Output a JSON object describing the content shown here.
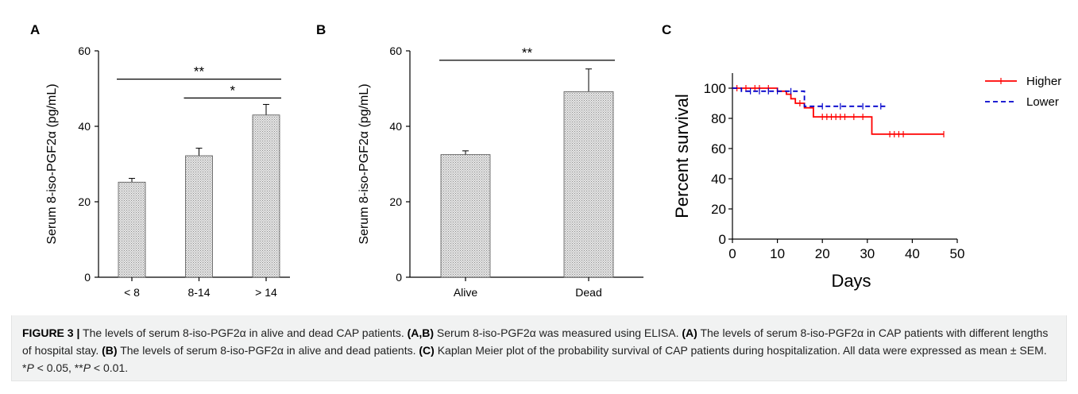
{
  "chart_data": [
    {
      "type": "bar",
      "panel": "A",
      "categories": [
        "< 8",
        "8-14",
        "> 14"
      ],
      "values": [
        25.2,
        32.2,
        43.0
      ],
      "errors": [
        1.0,
        2.0,
        2.8
      ],
      "ylabel": "Serum 8-iso-PGF2α (pg/mL)",
      "ylim": [
        0,
        60
      ],
      "yticks": [
        0,
        20,
        40,
        60
      ],
      "bar_fill": "dotted gray",
      "annotations": [
        {
          "from": 0,
          "to": 2,
          "label": "**",
          "level": 52.5
        },
        {
          "from": 1,
          "to": 2,
          "label": "*",
          "level": 47.5
        }
      ]
    },
    {
      "type": "bar",
      "panel": "B",
      "categories": [
        "Alive",
        "Dead"
      ],
      "values": [
        32.5,
        49.2
      ],
      "errors": [
        1.0,
        6.0
      ],
      "ylabel": "Serum 8-iso-PGF2α (pg/mL)",
      "ylim": [
        0,
        60
      ],
      "yticks": [
        0,
        20,
        40,
        60
      ],
      "bar_fill": "dotted gray",
      "annotations": [
        {
          "from": 0,
          "to": 1,
          "label": "**",
          "level": 57.5
        }
      ]
    },
    {
      "type": "line",
      "subtype": "kaplan-meier step",
      "panel": "C",
      "xlabel": "Days",
      "ylabel": "Percent survival",
      "xlim": [
        0,
        50
      ],
      "ylim": [
        0,
        110
      ],
      "xticks": [
        0,
        10,
        20,
        30,
        40,
        50
      ],
      "yticks": [
        0,
        20,
        40,
        60,
        80,
        100
      ],
      "legend_position": "top-right",
      "series": [
        {
          "name": "Higher",
          "color": "#ff0000",
          "style": "solid",
          "steps": [
            [
              0,
              100
            ],
            [
              10,
              100
            ],
            [
              10,
              98
            ],
            [
              12,
              98
            ],
            [
              12,
              96
            ],
            [
              13,
              96
            ],
            [
              13,
              93
            ],
            [
              14,
              93
            ],
            [
              14,
              90
            ],
            [
              16,
              90
            ],
            [
              16,
              87
            ],
            [
              18,
              87
            ],
            [
              18,
              81
            ],
            [
              31,
              81
            ],
            [
              31,
              69.5
            ],
            [
              47,
              69.5
            ]
          ],
          "censored": [
            [
              1,
              100
            ],
            [
              3,
              100
            ],
            [
              5,
              100
            ],
            [
              6,
              100
            ],
            [
              8,
              100
            ],
            [
              15,
              90
            ],
            [
              20,
              81
            ],
            [
              21,
              81
            ],
            [
              22,
              81
            ],
            [
              23,
              81
            ],
            [
              24,
              81
            ],
            [
              25,
              81
            ],
            [
              27,
              81
            ],
            [
              29,
              81
            ],
            [
              35,
              69.5
            ],
            [
              36,
              69.5
            ],
            [
              37,
              69.5
            ],
            [
              38,
              69.5
            ],
            [
              47,
              69.5
            ]
          ]
        },
        {
          "name": "Lower",
          "color": "#0000cc",
          "style": "dashed",
          "steps": [
            [
              0,
              100
            ],
            [
              2,
              100
            ],
            [
              2,
              98
            ],
            [
              16,
              98
            ],
            [
              16,
              88
            ],
            [
              34,
              88
            ]
          ],
          "censored": [
            [
              4,
              98
            ],
            [
              6,
              98
            ],
            [
              8,
              98
            ],
            [
              10,
              98
            ],
            [
              13,
              98
            ],
            [
              20,
              88
            ],
            [
              24,
              88
            ],
            [
              29,
              88
            ],
            [
              33,
              88
            ]
          ]
        }
      ]
    }
  ],
  "panel_labels": {
    "a": "A",
    "b": "B",
    "c": "C"
  },
  "caption": {
    "figure_label": "FIGURE 3 |",
    "title": " The levels of serum 8-iso-PGF2α in alive and dead CAP patients. ",
    "refs": [
      "(A,B)",
      "(A)",
      "(B)",
      "(C)"
    ],
    "seg1": " Serum 8-iso-PGF2α was measured using ELISA. ",
    "seg2": " The levels of serum 8-iso-PGF2α in CAP patients with different lengths of hospital stay. ",
    "seg3": " The levels of serum 8-iso-PGF2α in alive and dead patients. ",
    "seg4": " Kaplan Meier plot of the probability survival of CAP patients during hospitalization. All data were expressed as mean ± SEM. *",
    "p1": "P",
    "seg5": " < 0.05, **",
    "p2": "P",
    "seg6": " < 0.01."
  }
}
